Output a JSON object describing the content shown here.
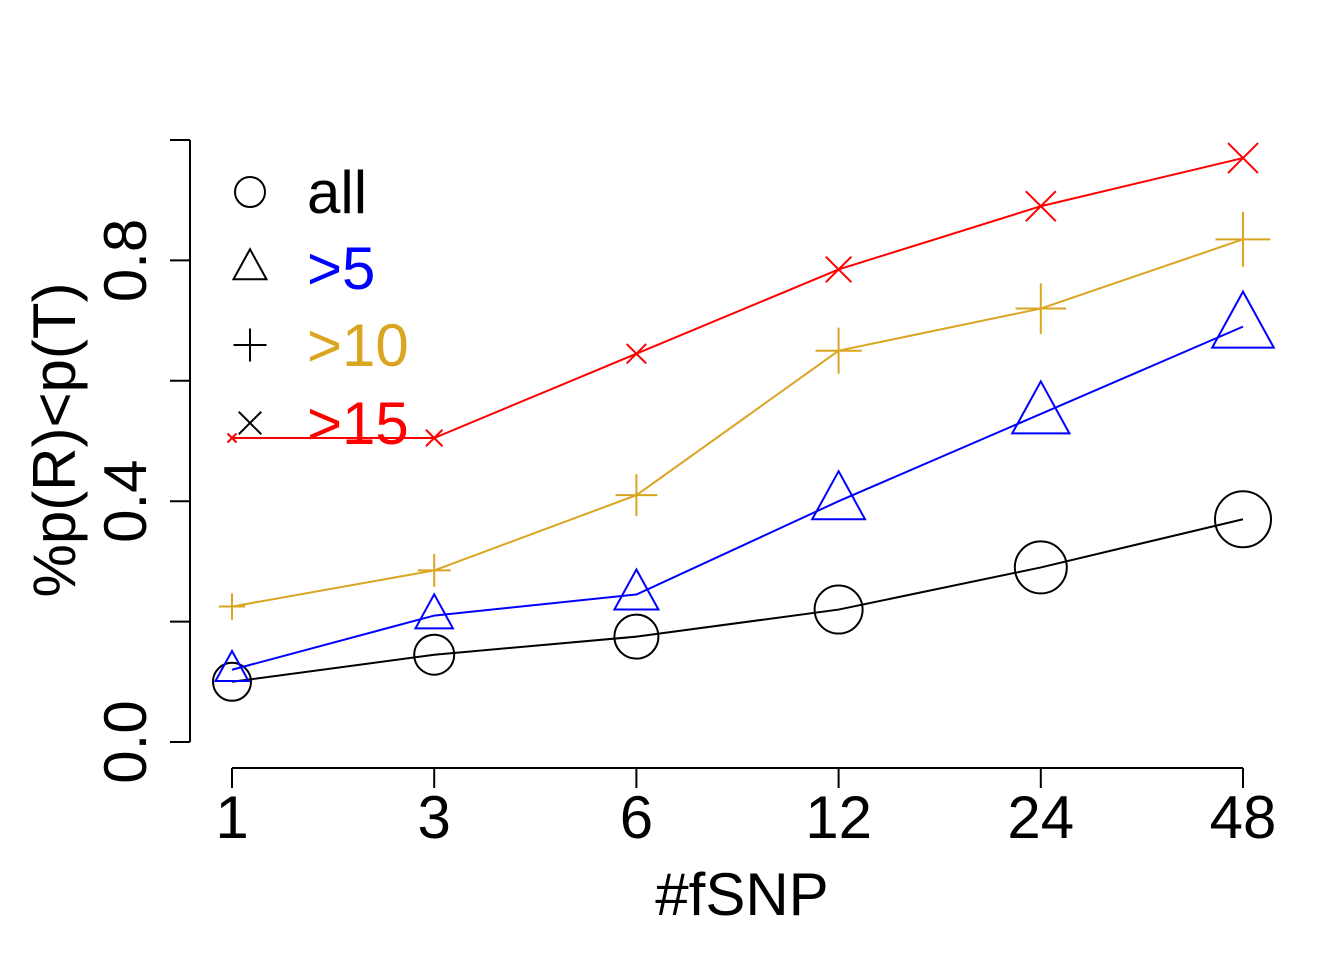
{
  "chart_data": {
    "type": "line",
    "xlabel": "#fSNP",
    "ylabel": "%p(R)<p(T)",
    "categories": [
      "1",
      "3",
      "6",
      "12",
      "24",
      "48"
    ],
    "ylim": [
      0,
      1
    ],
    "yticks": [
      0.0,
      0.2,
      0.4,
      0.6,
      0.8,
      1.0
    ],
    "ytick_labels": [
      "0.0",
      "",
      "0.4",
      "",
      "0.8",
      ""
    ],
    "grid": false,
    "legend_position": "top-left",
    "series": [
      {
        "name": "all",
        "color": "#000000",
        "marker": "circle",
        "marker_scale": [
          0.95,
          1.0,
          1.1,
          1.2,
          1.3,
          1.4
        ],
        "values": [
          0.1,
          0.145,
          0.175,
          0.22,
          0.29,
          0.37
        ]
      },
      {
        "name": ">5",
        "color": "#0000ff",
        "marker": "triangle",
        "marker_scale": [
          0.75,
          0.85,
          1.0,
          1.2,
          1.3,
          1.4
        ],
        "values": [
          0.12,
          0.21,
          0.245,
          0.4,
          0.545,
          0.69
        ]
      },
      {
        "name": ">10",
        "color": "#daa520",
        "marker": "plus",
        "marker_scale": [
          0.6,
          0.75,
          0.95,
          1.05,
          1.15,
          1.25
        ],
        "values": [
          0.225,
          0.285,
          0.41,
          0.65,
          0.72,
          0.835
        ]
      },
      {
        "name": ">15",
        "color": "#ff0000",
        "marker": "cross",
        "marker_scale": [
          0.3,
          0.55,
          0.65,
          0.85,
          1.0,
          1.0
        ],
        "values": [
          0.505,
          0.505,
          0.645,
          0.785,
          0.89,
          0.97
        ]
      }
    ],
    "legend": {
      "symbol_color": "#000000",
      "entries": [
        {
          "label": "all",
          "marker": "circle",
          "color": "#000000"
        },
        {
          "label": ">5",
          "marker": "triangle",
          "color": "#0000ff"
        },
        {
          "label": ">10",
          "marker": "plus",
          "color": "#daa520"
        },
        {
          "label": ">15",
          "marker": "cross",
          "color": "#ff0000"
        }
      ]
    }
  }
}
